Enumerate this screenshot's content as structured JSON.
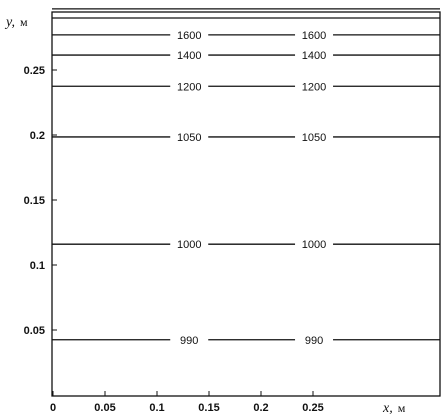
{
  "chart_data": {
    "type": "line",
    "subtype": "contour",
    "xlabel": "x,",
    "xunit": "м",
    "ylabel": "y,",
    "yunit": "м",
    "xlim": [
      0,
      0.3
    ],
    "ylim": [
      0,
      0.3
    ],
    "x_ticks": [
      "0",
      "0.05",
      "0.1",
      "0.15",
      "0.2",
      "0.25"
    ],
    "y_ticks": [
      "0.05",
      "0.1",
      "0.15",
      "0.2",
      "0.25"
    ],
    "x_tick_values": [
      0,
      0.05,
      0.1,
      0.15,
      0.2,
      0.25
    ],
    "y_tick_values": [
      0.05,
      0.1,
      0.15,
      0.2,
      0.25
    ],
    "grid": false,
    "contour_label_x": [
      0.131,
      0.251
    ],
    "contours": [
      {
        "y": 0.297,
        "label": ""
      },
      {
        "y": 0.29,
        "label": ""
      },
      {
        "y": 0.277,
        "label": "1600"
      },
      {
        "y": 0.2615,
        "label": "1400"
      },
      {
        "y": 0.2375,
        "label": "1200"
      },
      {
        "y": 0.1985,
        "label": "1050"
      },
      {
        "y": 0.116,
        "label": "1000"
      },
      {
        "y": 0.0425,
        "label": "990"
      }
    ]
  }
}
